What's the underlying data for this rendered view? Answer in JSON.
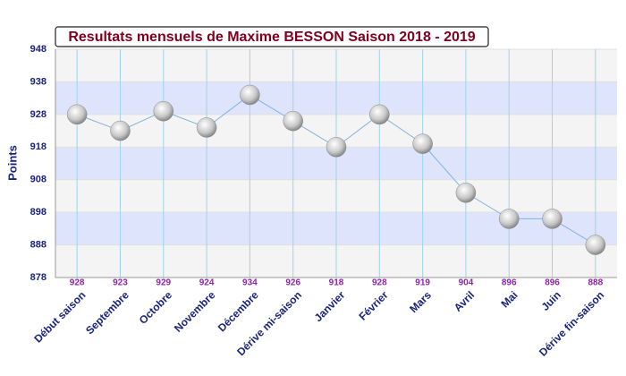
{
  "chart_data": {
    "type": "line",
    "title": "Resultats mensuels de Maxime BESSON Saison 2018 - 2019",
    "y_label": "Points",
    "categories": [
      "Début saison",
      "Septembre",
      "Octobre",
      "Novembre",
      "Décembre",
      "Dérive mi-saison",
      "Janvier",
      "Février",
      "Mars",
      "Avril",
      "Mai",
      "Juin",
      "Dérive fin-saison"
    ],
    "values": [
      928,
      923,
      929,
      924,
      934,
      926,
      918,
      928,
      919,
      904,
      896,
      896,
      888
    ],
    "color": "#7fb2e5",
    "ylim": [
      878,
      948
    ],
    "yticks": [
      878,
      888,
      898,
      908,
      918,
      928,
      938,
      948
    ],
    "grid": true,
    "band_colors": [
      "#f4f4f4",
      "#dde4fb"
    ]
  }
}
